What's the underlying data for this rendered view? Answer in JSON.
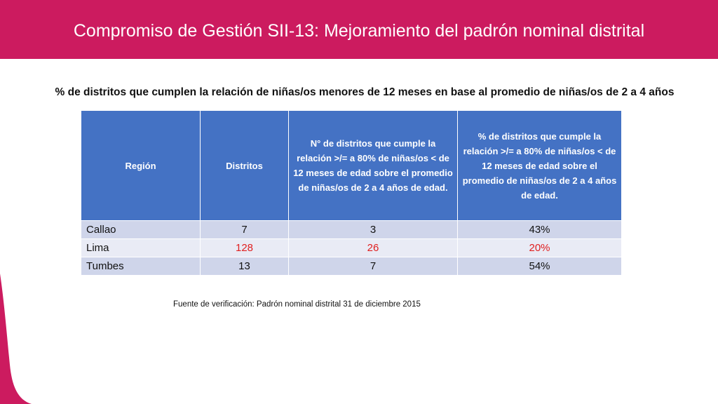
{
  "header": {
    "title": "Compromiso de Gestión SII-13: Mejoramiento del padrón nominal distrital"
  },
  "subtitle": "% de distritos que cumplen la relación de niñas/os menores de 12 meses en base al promedio de niñas/os de 2 a 4 años",
  "table": {
    "headers": [
      "Región",
      "Distritos",
      "N° de distritos que cumple la relación >/= a 80% de niñas/os < de 12 meses de edad sobre el promedio de niñas/os de 2 a 4 años de edad.",
      "% de distritos que cumple la relación >/= a 80% de niñas/os < de 12 meses de edad sobre el promedio de niñas/os de 2 a 4 años de edad."
    ],
    "rows": [
      {
        "region": "Callao",
        "distritos": "7",
        "cumple": "3",
        "porcentaje": "43%"
      },
      {
        "region": "Lima",
        "distritos": "128",
        "cumple": "26",
        "porcentaje": "20%"
      },
      {
        "region": "Tumbes",
        "distritos": "13",
        "cumple": "7",
        "porcentaje": "54%"
      }
    ]
  },
  "source": "Fuente de verificación: Padrón nominal distrital 31 de diciembre  2015",
  "colors": {
    "header_bg": "#cc1b5f",
    "table_header_bg": "#4472c4",
    "row_odd": "#cfd5ea",
    "row_even": "#e9ebf5",
    "highlight": "#e02020"
  }
}
